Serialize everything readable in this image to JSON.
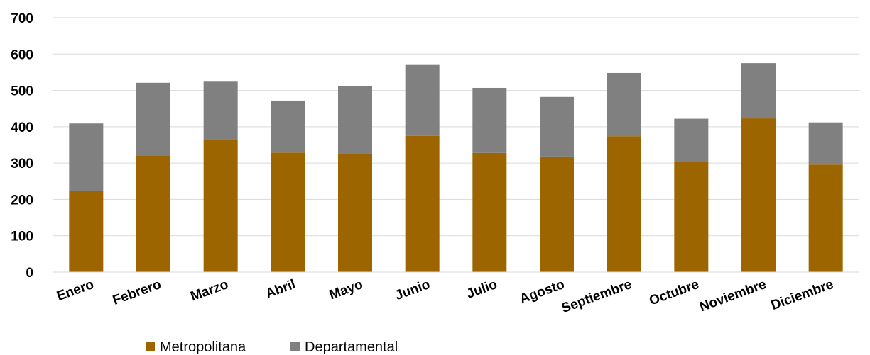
{
  "chart_data": {
    "type": "bar",
    "stacked": true,
    "categories": [
      "Enero",
      "Febrero",
      "Marzo",
      "Abril",
      "Mayo",
      "Junio",
      "Julio",
      "Agosto",
      "Septiembre",
      "Octubre",
      "Noviembre",
      "Diciembre"
    ],
    "series": [
      {
        "name": "Metropolitana",
        "color": "#9c6500",
        "values": [
          224,
          321,
          366,
          329,
          327,
          375,
          328,
          318,
          374,
          303,
          423,
          296
        ]
      },
      {
        "name": "Departamental",
        "color": "#808080",
        "values": [
          185,
          200,
          158,
          143,
          185,
          195,
          179,
          164,
          174,
          119,
          152,
          116
        ]
      }
    ],
    "title": "",
    "xlabel": "",
    "ylabel": "",
    "ylim": [
      0,
      700
    ],
    "yticks": [
      0,
      100,
      200,
      300,
      400,
      500,
      600,
      700
    ],
    "grid": true,
    "legend_position": "bottom-left"
  }
}
